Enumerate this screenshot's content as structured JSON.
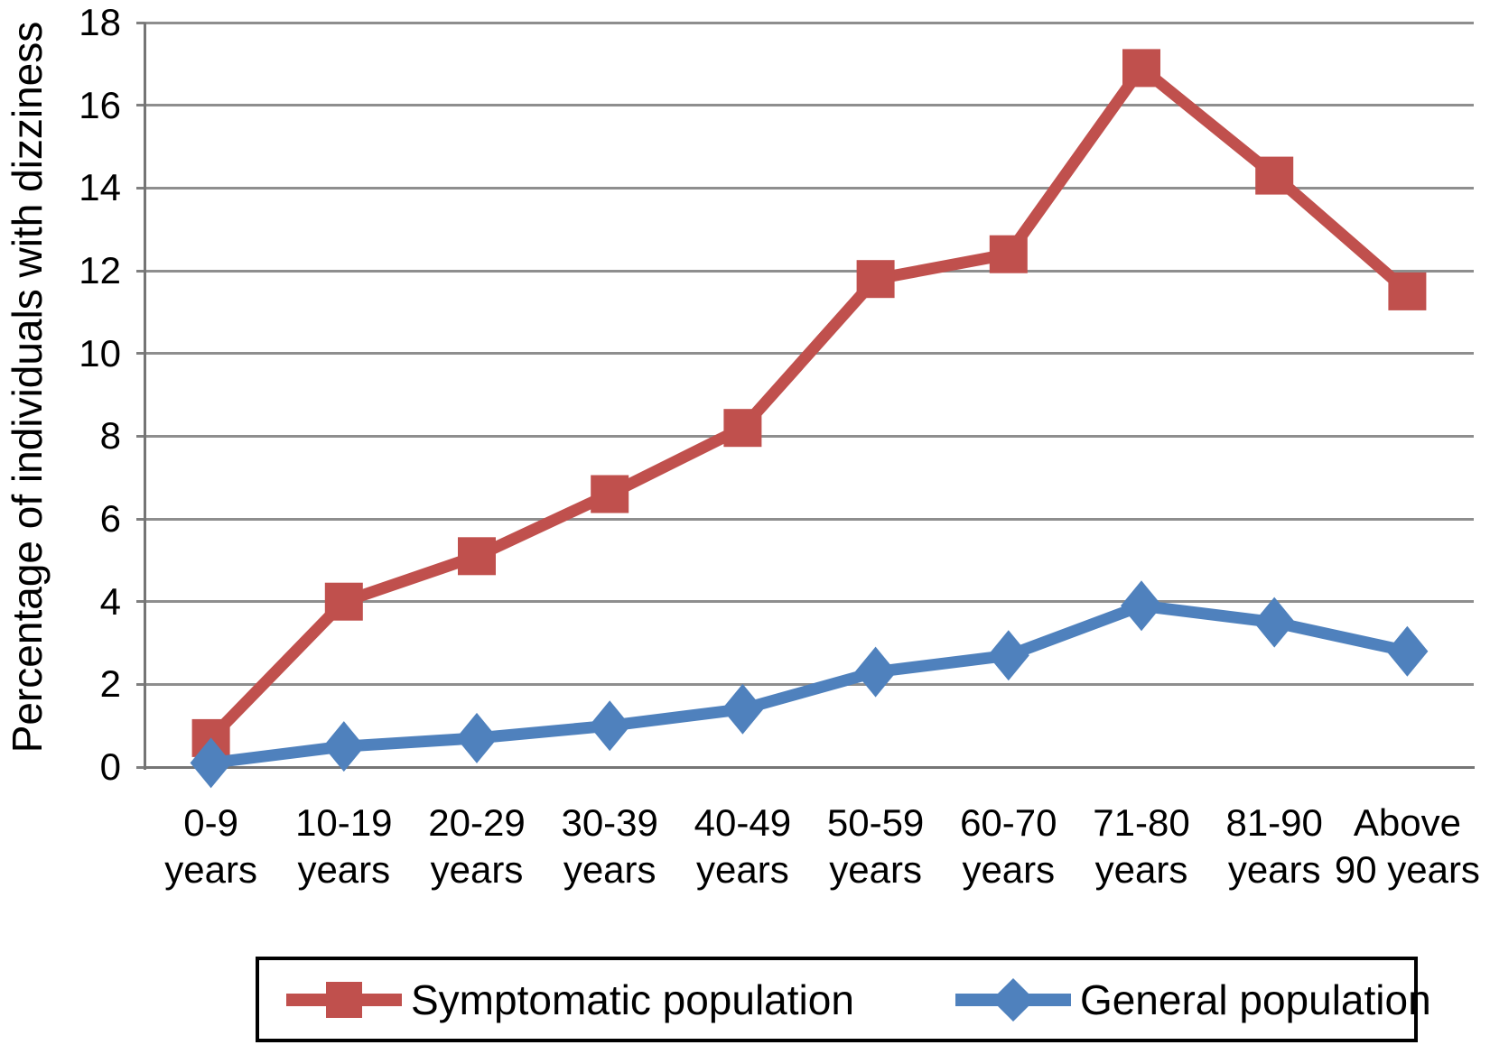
{
  "chart_data": {
    "type": "line",
    "title": "",
    "xlabel": "",
    "ylabel": "Percentage of individuals with dizziness",
    "ylim": [
      0,
      18
    ],
    "ytick_step": 2,
    "y_tick_labels": [
      "0",
      "2",
      "4",
      "6",
      "8",
      "10",
      "12",
      "14",
      "16",
      "18"
    ],
    "grid": true,
    "legend_position": "bottom",
    "categories": [
      [
        "0-9",
        "years"
      ],
      [
        "10-19",
        "years"
      ],
      [
        "20-29",
        "years"
      ],
      [
        "30-39",
        "years"
      ],
      [
        "40-49",
        "years"
      ],
      [
        "50-59",
        "years"
      ],
      [
        "60-70",
        "years"
      ],
      [
        "71-80",
        "years"
      ],
      [
        "81-90",
        "years"
      ],
      [
        "Above",
        "90 years"
      ]
    ],
    "series": [
      {
        "name": "Symptomatic population",
        "color": "#C0504D",
        "marker": "square",
        "values": [
          0.7,
          4.0,
          5.1,
          6.6,
          8.2,
          11.8,
          12.4,
          16.9,
          14.3,
          11.5
        ]
      },
      {
        "name": "General population",
        "color": "#4F81BD",
        "marker": "diamond",
        "values": [
          0.1,
          0.5,
          0.7,
          1.0,
          1.4,
          2.3,
          2.7,
          3.9,
          3.5,
          2.8
        ]
      }
    ]
  },
  "colors": {
    "background": "#FFFFFF",
    "gridline": "#8E8E8E",
    "axis_line": "#757575",
    "text": "#000000",
    "legend_border": "#000000"
  }
}
